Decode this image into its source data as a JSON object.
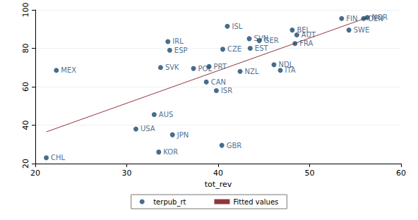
{
  "chart_data": {
    "type": "scatter",
    "x_label": "tot_rev",
    "xlim": [
      20,
      60
    ],
    "xticks": [
      20,
      30,
      40,
      50,
      60
    ],
    "ylim": [
      20,
      100
    ],
    "yticks": [
      20,
      40,
      60,
      80,
      100
    ],
    "grid": true,
    "legend": "bottom",
    "series": [
      {
        "name": "terpub_rt",
        "type": "scatter",
        "color": "#1a476f",
        "marker": "circle",
        "labels": [
          "CHL",
          "MEX",
          "USA",
          "AUS",
          "KOR",
          "JPN",
          "SVK",
          "ESP",
          "IRL",
          "POL",
          "PRT",
          "CAN",
          "ISR",
          "GBR",
          "ISL",
          "CZE",
          "SVN",
          "GER",
          "EST",
          "NZL",
          "NDL",
          "ITA",
          "BEL",
          "AUT",
          "FRA",
          "SWE",
          "FIN",
          "DEN",
          "NOR"
        ],
        "x": [
          21.2,
          22.3,
          31.0,
          33.0,
          33.5,
          35.0,
          33.7,
          34.7,
          34.5,
          37.3,
          39.0,
          38.7,
          39.8,
          40.4,
          41.0,
          40.5,
          43.4,
          44.5,
          43.5,
          42.4,
          46.1,
          46.8,
          48.1,
          48.6,
          48.4,
          54.3,
          53.5,
          55.9,
          56.3
        ],
        "values": [
          23,
          68.5,
          38,
          45.5,
          26,
          35,
          70,
          79,
          83.5,
          69.5,
          70.5,
          62.5,
          58,
          29.5,
          91.5,
          79.5,
          85,
          84,
          80,
          68,
          71.5,
          68.5,
          89.5,
          87,
          82.5,
          89.5,
          95.5,
          95.5,
          96
        ]
      },
      {
        "name": "Fitted values",
        "type": "line",
        "color": "#90353b",
        "line_style": "solid",
        "x": [
          21.2,
          56.3
        ],
        "values": [
          36.5,
          96
        ]
      }
    ]
  }
}
